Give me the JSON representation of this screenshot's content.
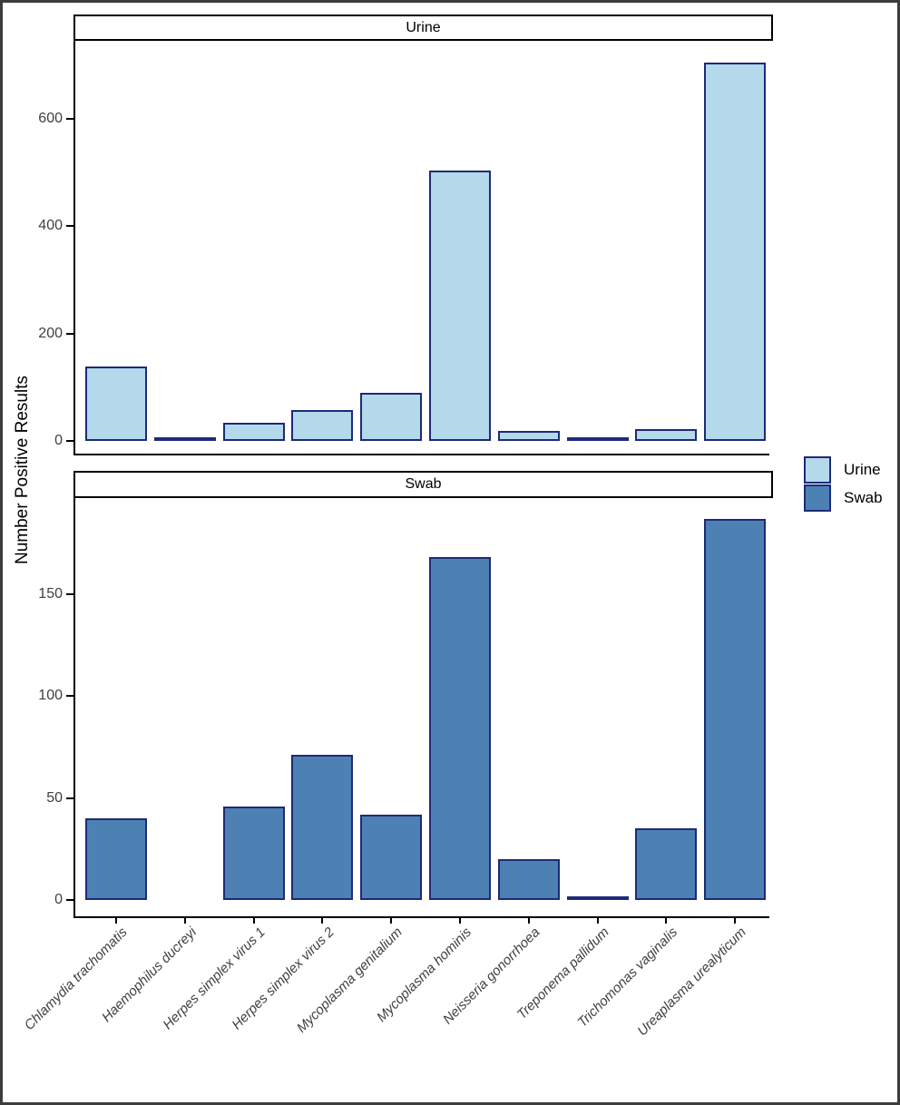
{
  "chart_data": {
    "type": "bar",
    "title": "",
    "ylabel": "Number Positive Results",
    "xlabel": "",
    "grid": false,
    "categories": [
      "Chlamydia trachomatis",
      "Haemophilus ducreyi",
      "Herpes simplex virus 1",
      "Herpes simplex virus 2",
      "Mycoplasma genitalium",
      "Mycoplasma hominis",
      "Neisseria gonorrhoea",
      "Treponema pallidum",
      "Trichomonas vaginalis",
      "Ureaplasma urealyticum"
    ],
    "facets": [
      {
        "label": "Urine",
        "fill": "#b3d9ea",
        "ymax": 745,
        "yticks": [
          0,
          200,
          400,
          600
        ],
        "values": [
          139,
          2,
          33,
          58,
          90,
          503,
          19,
          1,
          22,
          705
        ]
      },
      {
        "label": "Swab",
        "fill": "#4d81b4",
        "ymax": 197,
        "yticks": [
          0,
          50,
          100,
          150
        ],
        "values": [
          40,
          0,
          46,
          71,
          42,
          168,
          20,
          2,
          35,
          187
        ]
      }
    ],
    "legend": {
      "position": "right",
      "items": [
        {
          "label": "Urine",
          "color": "#b3d9ea"
        },
        {
          "label": "Swab",
          "color": "#4d81b4"
        }
      ]
    },
    "bar_border_color": "#1e2a78",
    "axis_color": "#000000",
    "tick_label_color": "#404040"
  }
}
